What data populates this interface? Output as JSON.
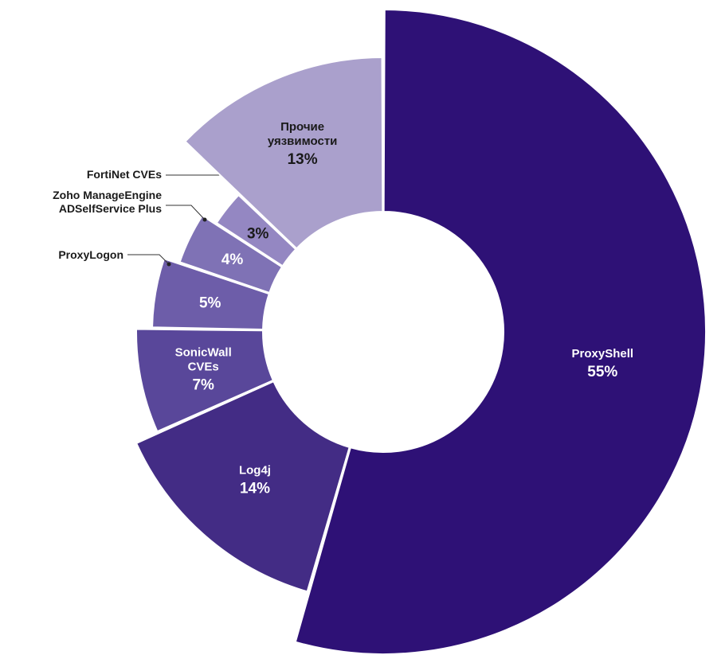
{
  "chart_data": {
    "type": "pie",
    "variant": "donut",
    "title": "",
    "slices": [
      {
        "label": "ProxyShell",
        "value": 55,
        "display": "55%",
        "color": "#2e1176",
        "text": "light",
        "outer": false
      },
      {
        "label": "Log4j",
        "value": 14,
        "display": "14%",
        "color": "#432c85",
        "text": "light",
        "outer": false
      },
      {
        "label": "SonicWall CVEs",
        "value": 7,
        "display": "7%",
        "color": "#59479a",
        "text": "light",
        "outer": false
      },
      {
        "label": "ProxyLogon",
        "value": 5,
        "display": "5%",
        "color": "#6d5da9",
        "text": "light",
        "outer": true
      },
      {
        "label": "Zoho ManageEngine ADSelfService Plus",
        "value": 4,
        "display": "4%",
        "color": "#7f72b5",
        "text": "light",
        "outer": true
      },
      {
        "label": "FortiNet CVEs",
        "value": 3,
        "display": "3%",
        "color": "#9487c2",
        "text": "dark",
        "outer": true
      },
      {
        "label": "Прочие уязвимости",
        "value": 13,
        "display": "13%",
        "color": "#aaa0cc",
        "text": "dark",
        "outer": false
      }
    ]
  }
}
